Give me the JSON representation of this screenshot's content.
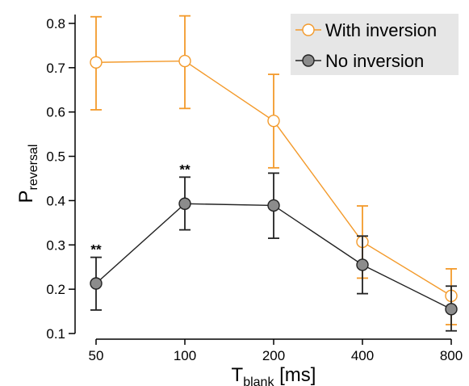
{
  "chart_data": {
    "type": "line",
    "categories": [
      "50",
      "100",
      "200",
      "400",
      "800"
    ],
    "series": [
      {
        "name": "With inversion",
        "values": [
          0.712,
          0.715,
          0.58,
          0.307,
          0.185
        ],
        "err_low": [
          0.605,
          0.608,
          0.474,
          0.225,
          0.12
        ],
        "err_high": [
          0.815,
          0.817,
          0.685,
          0.388,
          0.246
        ],
        "color": "#f39a2b",
        "marker_fill": "#ffffff"
      },
      {
        "name": "No inversion",
        "values": [
          0.213,
          0.393,
          0.389,
          0.255,
          0.155
        ],
        "err_low": [
          0.153,
          0.334,
          0.315,
          0.19,
          0.106
        ],
        "err_high": [
          0.272,
          0.453,
          0.462,
          0.32,
          0.207
        ],
        "color": "#222222",
        "marker_fill": "#8c8c8c"
      }
    ],
    "ylim": [
      0.1,
      0.82
    ],
    "yticks": [
      "0.1",
      "0.2",
      "0.3",
      "0.4",
      "0.5",
      "0.6",
      "0.7",
      "0.8"
    ],
    "ylabel": {
      "main": "P",
      "sub": "reversal"
    },
    "xlabel": {
      "main": "T",
      "sub": "blank",
      "unit": " [ms]"
    },
    "significance": [
      {
        "category_index": 0,
        "label": "**"
      },
      {
        "category_index": 1,
        "label": "**"
      }
    ],
    "legend_position": "top-right",
    "legend_background": "#e6e6e6",
    "grid": false
  }
}
